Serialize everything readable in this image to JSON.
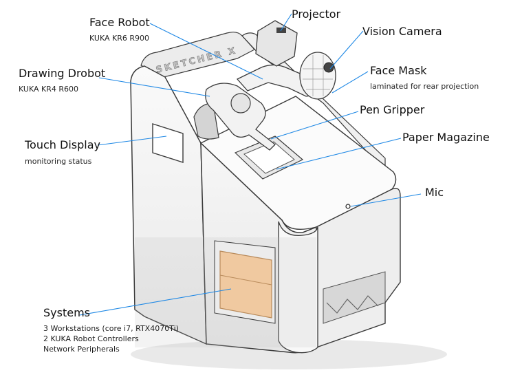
{
  "brand_text": "SKETCHER X",
  "labels": {
    "face_robot": {
      "title": "Face Robot",
      "sub": "KUKA KR6 R900"
    },
    "projector": {
      "title": "Projector"
    },
    "vision_camera": {
      "title": "Vision Camera"
    },
    "drawing_drobot": {
      "title": "Drawing Drobot",
      "sub": "KUKA KR4 R600"
    },
    "face_mask": {
      "title": "Face Mask",
      "sub": "laminated for rear projection"
    },
    "pen_gripper": {
      "title": "Pen Gripper"
    },
    "paper_magazine": {
      "title": "Paper Magazine"
    },
    "touch_display": {
      "title": "Touch Display",
      "sub": "monitoring status"
    },
    "mic": {
      "title": "Mic"
    },
    "systems": {
      "title": "Systems",
      "lines": [
        "3 Workstations (core i7, RTX4070Ti)",
        "2 KUKA Robot Controllers",
        "Network Peripherals"
      ]
    }
  },
  "colors": {
    "leader": "#1e88e5",
    "enclosure": "#f4f4f4",
    "outline": "#3a3a3a",
    "shelf": "#f0c9a0"
  }
}
